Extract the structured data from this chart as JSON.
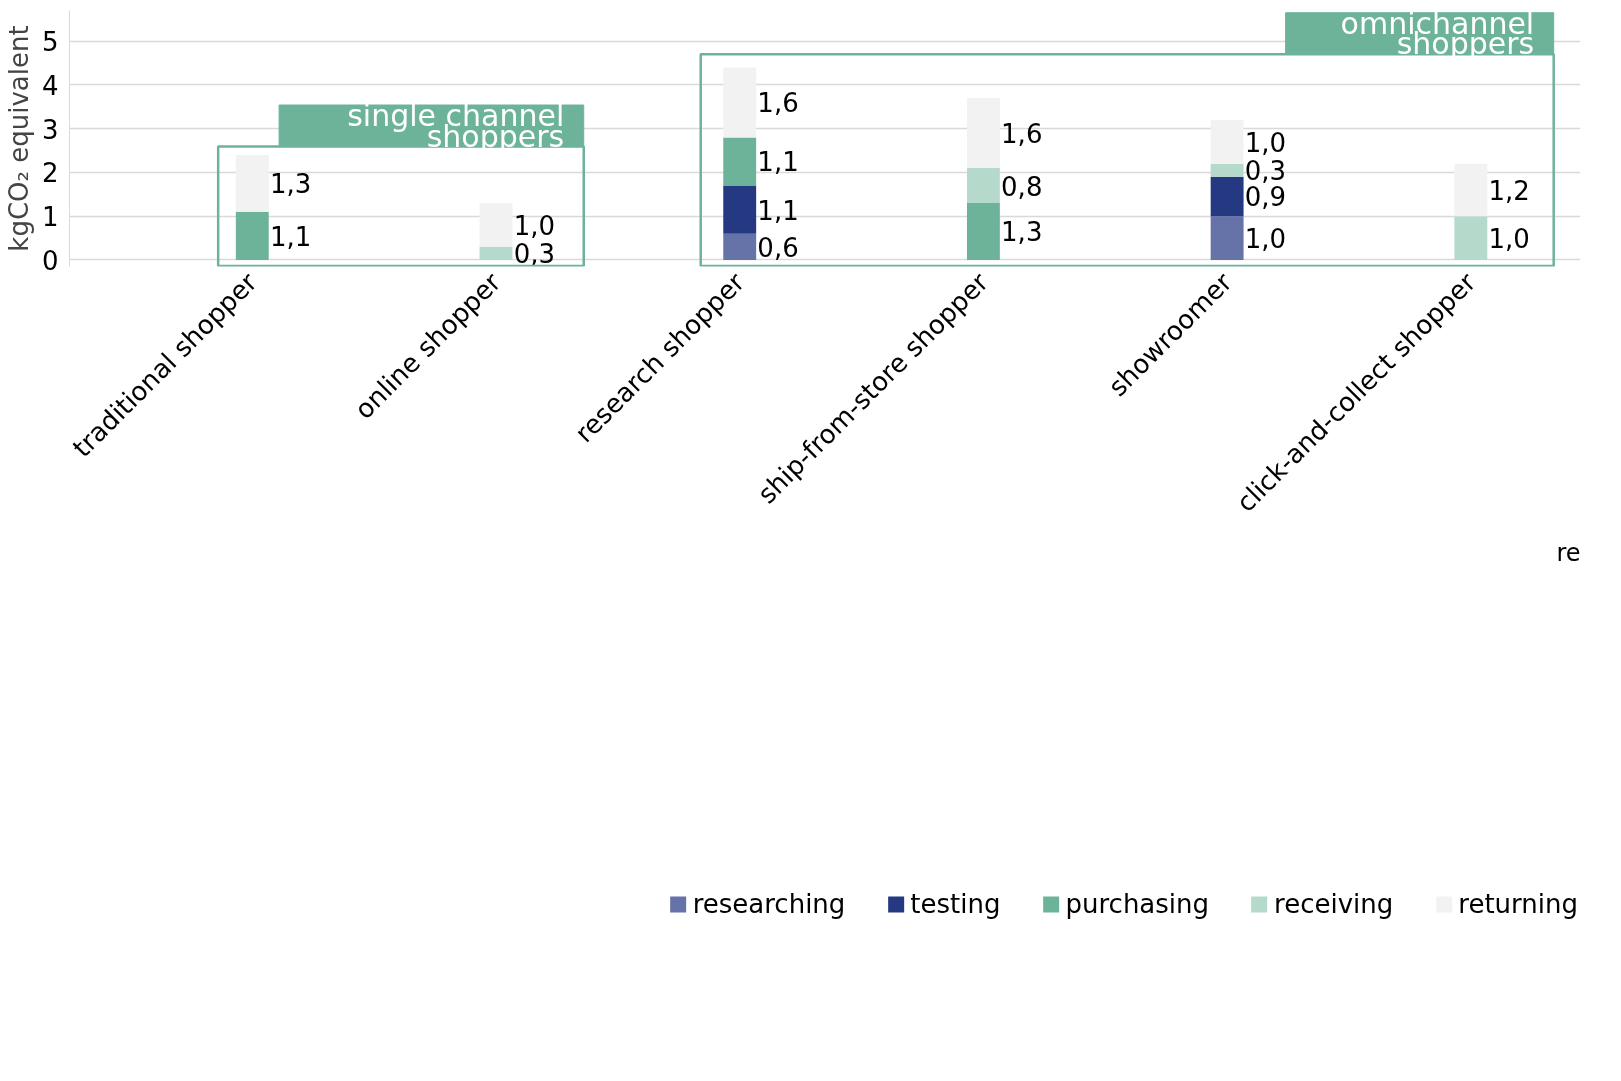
{
  "chart_data": {
    "type": "bar",
    "stacked": true,
    "categories": [
      "traditional shopper",
      "online shopper",
      "research shopper",
      "ship-from-store shopper",
      "showroomer",
      "click-and-collect shopper"
    ],
    "ylabel": "kgCO₂ equivalent",
    "ylim": [
      -0.15,
      5.7
    ],
    "yticks": [
      0,
      1,
      2,
      3,
      4,
      5
    ],
    "grid": "y",
    "legend": "bottom",
    "series": [
      {
        "name": "researching",
        "color": "#6673a8",
        "values": [
          null,
          null,
          0.6,
          null,
          1.0,
          null
        ],
        "value_labels": [
          null,
          null,
          "0,6",
          null,
          "1,0",
          null
        ]
      },
      {
        "name": "testing",
        "color": "#253882",
        "values": [
          null,
          null,
          1.1,
          null,
          0.9,
          null
        ],
        "value_labels": [
          null,
          null,
          "1,1",
          null,
          "0,9",
          null
        ]
      },
      {
        "name": "purchasing",
        "color": "#6db39a",
        "values": [
          1.1,
          null,
          1.1,
          1.3,
          null,
          null
        ],
        "value_labels": [
          "1,1",
          null,
          "1,1",
          "1,3",
          null,
          null
        ]
      },
      {
        "name": "receiving",
        "color": "#b5dacb",
        "values": [
          null,
          0.3,
          null,
          0.8,
          0.3,
          1.0
        ],
        "value_labels": [
          null,
          "0,3",
          null,
          "0,8",
          "0,3",
          "1,0"
        ]
      },
      {
        "name": "returning",
        "color": "#f2f2f2",
        "values": [
          1.3,
          1.0,
          1.6,
          1.6,
          1.0,
          1.2
        ],
        "value_labels": [
          "1,3",
          "1,0",
          "1,6",
          "1,6",
          "1,0",
          "1,2"
        ]
      }
    ],
    "annotations": [
      "single channel\nshoppers",
      "omnichannel\nshoppers",
      "re"
    ]
  }
}
